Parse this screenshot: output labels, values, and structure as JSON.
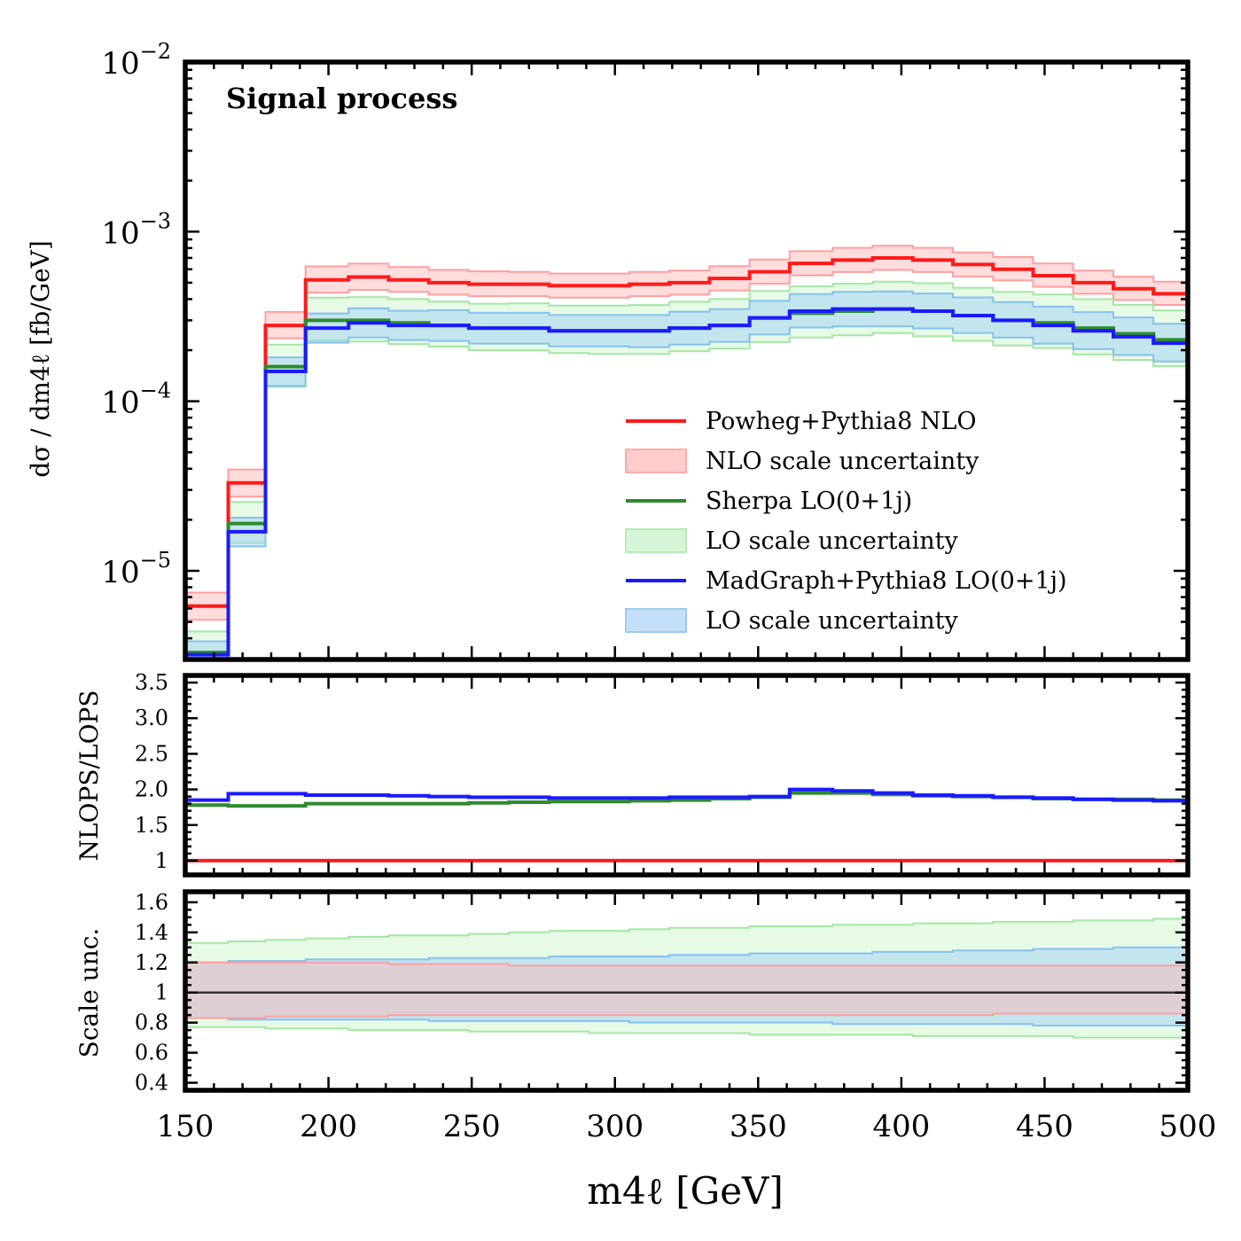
{
  "chart_data": {
    "type": "line",
    "x_bin_edges": [
      150,
      165,
      178,
      192,
      207,
      221,
      235,
      249,
      263,
      277,
      291,
      305,
      319,
      333,
      347,
      361,
      376,
      390,
      404,
      418,
      432,
      446,
      460,
      474,
      488,
      500
    ],
    "xlabel": "m4ℓ [GeV]",
    "xlim": [
      150,
      500
    ],
    "xticks": [
      "150",
      "200",
      "250",
      "300",
      "350",
      "400",
      "450",
      "500"
    ],
    "panels": [
      {
        "name": "main",
        "ylabel": "dσ / dm4ℓ [fb/GeV]",
        "yscale": "log",
        "ylim": [
          3e-06,
          0.01
        ],
        "yticks": [
          {
            "base": "10",
            "exp": "−2",
            "value": 0.01
          },
          {
            "base": "10",
            "exp": "−3",
            "value": 0.001
          },
          {
            "base": "10",
            "exp": "−4",
            "value": 0.0001
          },
          {
            "base": "10",
            "exp": "−5",
            "value": 1e-05
          }
        ],
        "annotation": "Signal process",
        "series": [
          {
            "name": "Powheg+Pythia8 NLO",
            "color": "#ff1a1a",
            "values": [
              6.2e-06,
              3.3e-05,
              0.00028,
              0.00052,
              0.00054,
              0.00052,
              0.0005,
              0.00049,
              0.00049,
              0.00048,
              0.00048,
              0.00049,
              0.0005,
              0.00053,
              0.00058,
              0.00065,
              0.00068,
              0.0007,
              0.00068,
              0.00064,
              0.0006,
              0.00055,
              0.0005,
              0.00046,
              0.00043
            ]
          },
          {
            "name": "Sherpa LO(0+1j)",
            "color": "#2e8b2e",
            "values": [
              3.3e-06,
              1.9e-05,
              0.00016,
              0.0003,
              0.0003,
              0.00029,
              0.00028,
              0.00027,
              0.00027,
              0.00026,
              0.00026,
              0.00026,
              0.00027,
              0.00028,
              0.00031,
              0.00033,
              0.00034,
              0.00035,
              0.00034,
              0.00032,
              0.0003,
              0.00029,
              0.00027,
              0.00025,
              0.00023
            ]
          },
          {
            "name": "MadGraph+Pythia8 LO(0+1j)",
            "color": "#1a1aff",
            "values": [
              3.2e-06,
              1.7e-05,
              0.00015,
              0.00027,
              0.00029,
              0.00028,
              0.00028,
              0.00027,
              0.00027,
              0.00026,
              0.00026,
              0.00026,
              0.00027,
              0.00028,
              0.00031,
              0.00034,
              0.00035,
              0.00035,
              0.00034,
              0.00032,
              0.0003,
              0.00028,
              0.00026,
              0.00024,
              0.00022
            ]
          }
        ],
        "bands": [
          {
            "name": "NLO scale uncertainty",
            "fill": "#ffb3b3",
            "stroke": "#ff9f9f",
            "opacity": 0.45,
            "rel_up": [
              1.2,
              1.2,
              1.2,
              1.2,
              1.2,
              1.19,
              1.19,
              1.19,
              1.18,
              1.18,
              1.18,
              1.18,
              1.18,
              1.18,
              1.18,
              1.18,
              1.18,
              1.18,
              1.18,
              1.18,
              1.18,
              1.18,
              1.18,
              1.18,
              1.18
            ],
            "rel_down": [
              0.83,
              0.83,
              0.84,
              0.84,
              0.84,
              0.85,
              0.85,
              0.85,
              0.85,
              0.85,
              0.85,
              0.85,
              0.85,
              0.85,
              0.85,
              0.85,
              0.85,
              0.85,
              0.85,
              0.85,
              0.86,
              0.86,
              0.86,
              0.86,
              0.86
            ]
          },
          {
            "name": "LO scale uncertainty",
            "fill": "#b8f0b8",
            "stroke": "#a5e6a5",
            "opacity": 0.35,
            "of_series": 1,
            "rel_up": [
              1.33,
              1.34,
              1.35,
              1.36,
              1.37,
              1.38,
              1.38,
              1.39,
              1.4,
              1.41,
              1.41,
              1.42,
              1.43,
              1.43,
              1.44,
              1.44,
              1.45,
              1.45,
              1.46,
              1.46,
              1.47,
              1.47,
              1.48,
              1.48,
              1.49
            ],
            "rel_down": [
              0.77,
              0.77,
              0.76,
              0.76,
              0.75,
              0.75,
              0.75,
              0.74,
              0.74,
              0.74,
              0.73,
              0.73,
              0.73,
              0.73,
              0.72,
              0.72,
              0.72,
              0.72,
              0.71,
              0.71,
              0.71,
              0.71,
              0.7,
              0.7,
              0.7
            ]
          },
          {
            "name": "LO scale uncertainty",
            "fill": "#9fd0f5",
            "stroke": "#86c1ee",
            "opacity": 0.5,
            "of_series": 2,
            "rel_up": [
              1.2,
              1.21,
              1.21,
              1.22,
              1.22,
              1.22,
              1.23,
              1.23,
              1.23,
              1.24,
              1.24,
              1.24,
              1.25,
              1.25,
              1.26,
              1.26,
              1.26,
              1.27,
              1.27,
              1.28,
              1.28,
              1.29,
              1.29,
              1.3,
              1.3
            ],
            "rel_down": [
              0.83,
              0.82,
              0.82,
              0.82,
              0.82,
              0.82,
              0.81,
              0.81,
              0.81,
              0.81,
              0.81,
              0.8,
              0.8,
              0.8,
              0.8,
              0.8,
              0.79,
              0.79,
              0.79,
              0.79,
              0.79,
              0.78,
              0.78,
              0.78,
              0.78
            ]
          }
        ],
        "legend": {
          "placement": "center-right",
          "entries": [
            {
              "label": "Powheg+Pythia8 NLO",
              "kind": "line",
              "color": "#ff1a1a"
            },
            {
              "label": "NLO scale uncertainty",
              "kind": "patch",
              "color": "#ffcccc",
              "edge": "#ffaaaa"
            },
            {
              "label": "Sherpa LO(0+1j)",
              "kind": "line",
              "color": "#2e8b2e"
            },
            {
              "label": "LO scale uncertainty",
              "kind": "patch",
              "color": "#d6f5d6",
              "edge": "#b7ebb7"
            },
            {
              "label": "MadGraph+Pythia8 LO(0+1j)",
              "kind": "line",
              "color": "#1a1aff"
            },
            {
              "label": "LO scale uncertainty",
              "kind": "patch",
              "color": "#c4e0f9",
              "edge": "#9ccbf0"
            }
          ]
        }
      },
      {
        "name": "ratio",
        "ylabel": "NLOPS/LOPS",
        "yscale": "linear",
        "ylim": [
          0.8,
          3.6
        ],
        "yticks": [
          "1",
          "1.5",
          "2.0",
          "2.5",
          "3.0",
          "3.5"
        ],
        "series": [
          {
            "name": "Powheg+Pythia8 NLO",
            "color": "#ff1a1a",
            "values": [
              1.0,
              1.0,
              1.0,
              1.0,
              1.0,
              1.0,
              1.0,
              1.0,
              1.0,
              1.0,
              1.0,
              1.0,
              1.0,
              1.0,
              1.0,
              1.0,
              1.0,
              1.0,
              1.0,
              1.0,
              1.0,
              1.0,
              1.0,
              1.0,
              1.0
            ]
          },
          {
            "name": "Sherpa LO(0+1j)",
            "color": "#2e8b2e",
            "values": [
              1.78,
              1.77,
              1.77,
              1.8,
              1.8,
              1.8,
              1.8,
              1.81,
              1.82,
              1.83,
              1.83,
              1.84,
              1.85,
              1.87,
              1.89,
              1.95,
              1.95,
              1.93,
              1.91,
              1.9,
              1.89,
              1.87,
              1.86,
              1.86,
              1.85
            ]
          },
          {
            "name": "MadGraph+Pythia8 LO(0+1j)",
            "color": "#1a1aff",
            "values": [
              1.85,
              1.94,
              1.94,
              1.92,
              1.92,
              1.91,
              1.9,
              1.89,
              1.89,
              1.88,
              1.88,
              1.88,
              1.89,
              1.89,
              1.9,
              2.0,
              1.98,
              1.95,
              1.92,
              1.91,
              1.89,
              1.88,
              1.86,
              1.85,
              1.84
            ]
          }
        ]
      },
      {
        "name": "scale",
        "ylabel": "Scale unc.",
        "yscale": "linear",
        "ylim": [
          0.35,
          1.67
        ],
        "yticks": [
          "0.4",
          "0.6",
          "0.8",
          "1",
          "1.2",
          "1.4",
          "1.6"
        ],
        "reference_line": 1.0
      }
    ]
  }
}
